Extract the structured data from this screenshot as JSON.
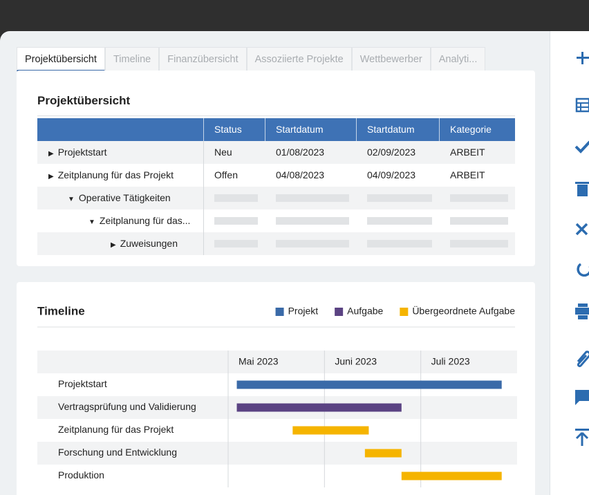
{
  "tabs": [
    "Projektübersicht",
    "Timeline",
    "Finanzübersicht",
    "Assoziierte Projekte",
    "Wettbewerber",
    "Analyti..."
  ],
  "overview": {
    "title": "Projektübersicht",
    "columns": [
      "Status",
      "Startdatum",
      "Startdatum",
      "Kategorie"
    ],
    "rows": [
      {
        "label": "Projektstart",
        "cells": [
          "Neu",
          "01/08/2023",
          "02/09/2023",
          "ARBEIT"
        ]
      },
      {
        "label": "Zeitplanung für das Projekt",
        "cells": [
          "Offen",
          "04/08/2023",
          "04/09/2023",
          "ARBEIT"
        ]
      },
      {
        "label": "Operative Tätigkeiten"
      },
      {
        "label": "Zeitplanung für das..."
      },
      {
        "label": "Zuweisungen"
      }
    ]
  },
  "timeline": {
    "title": "Timeline",
    "legend": [
      {
        "name": "Projekt",
        "color": "#3a6aa8"
      },
      {
        "name": "Aufgabe",
        "color": "#5b4383"
      },
      {
        "name": "Übergeordnete Aufgabe",
        "color": "#f5b400"
      }
    ],
    "xlim": [
      0,
      3
    ],
    "xticks": [
      {
        "value": 0,
        "label": "Mai 2023"
      },
      {
        "value": 1,
        "label": "Juni 2023"
      },
      {
        "value": 2,
        "label": "Juli 2023"
      }
    ],
    "tasks": [
      {
        "name": "Projektstart",
        "start": 0.09,
        "end": 2.84,
        "color": "#3a6aa8"
      },
      {
        "name": "Vertragsprüfung und Validierung",
        "start": 0.09,
        "end": 1.8,
        "color": "#5b4383"
      },
      {
        "name": "Zeitplanung für das Projekt",
        "start": 0.67,
        "end": 1.46,
        "color": "#f5b400"
      },
      {
        "name": "Forschung und Entwicklung",
        "start": 1.42,
        "end": 1.8,
        "color": "#f5b400"
      },
      {
        "name": "Produktion",
        "start": 1.8,
        "end": 2.84,
        "color": "#f5b400"
      }
    ]
  }
}
